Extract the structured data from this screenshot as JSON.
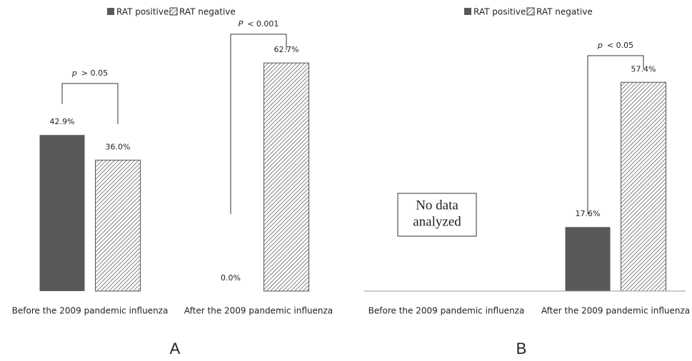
{
  "chart_data": [
    {
      "type": "bar",
      "panel": "A",
      "categories": [
        "Before the 2009 pandemic influenza",
        "After the 2009 pandemic influenza"
      ],
      "series": [
        {
          "name": "RAT positive",
          "color": "#595959",
          "values": [
            42.9,
            0.0
          ],
          "value_labels": [
            "42.9%",
            "0.0%"
          ]
        },
        {
          "name": "RAT negative",
          "color": "#000000",
          "pattern": "hatch",
          "values": [
            36.0,
            62.7
          ],
          "value_labels": [
            "36.0%",
            "62.7%"
          ]
        }
      ],
      "significance": [
        {
          "symbol": "p",
          "text": "> 0.05"
        },
        {
          "symbol": "P",
          "text": "< 0.001"
        }
      ],
      "ylim": [
        0,
        70
      ],
      "axis_line": false
    },
    {
      "type": "bar",
      "panel": "B",
      "categories": [
        "Before the 2009 pandemic influenza",
        "After the 2009 pandemic influenza"
      ],
      "series": [
        {
          "name": "RAT positive",
          "color": "#595959",
          "values": [
            null,
            17.6
          ],
          "value_labels": [
            null,
            "17.6%"
          ]
        },
        {
          "name": "RAT negative",
          "color": "#000000",
          "pattern": "hatch",
          "values": [
            null,
            57.4
          ],
          "value_labels": [
            null,
            "57.4%"
          ]
        }
      ],
      "significance": [
        null,
        {
          "symbol": "p",
          "text": "< 0.05"
        }
      ],
      "note": [
        "No data",
        "analyzed"
      ],
      "ylim": [
        0,
        70
      ],
      "axis_line": true
    }
  ]
}
